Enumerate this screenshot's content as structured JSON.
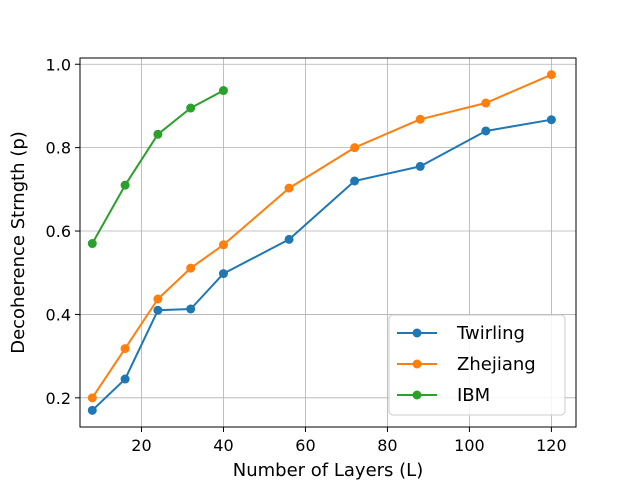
{
  "chart_data": {
    "type": "line",
    "title": "",
    "xlabel": "Number of Layers (L)",
    "ylabel": "Decoherence Strngth (p)",
    "xlim": [
      5,
      126
    ],
    "ylim": [
      0.13,
      1.015
    ],
    "x_ticks": [
      20,
      40,
      60,
      80,
      100,
      120
    ],
    "y_ticks": [
      0.2,
      0.4,
      0.6,
      0.8,
      1.0
    ],
    "x_tick_labels": [
      "20",
      "40",
      "60",
      "80",
      "100",
      "120"
    ],
    "y_tick_labels": [
      "0.2",
      "0.4",
      "0.6",
      "0.8",
      "1.0"
    ],
    "grid": true,
    "legend_position": "lower-right",
    "series": [
      {
        "name": "Twirling",
        "color": "#1f77b4",
        "x": [
          8,
          16,
          24,
          32,
          40,
          56,
          72,
          88,
          104,
          120
        ],
        "y": [
          0.17,
          0.245,
          0.41,
          0.413,
          0.498,
          0.58,
          0.72,
          0.755,
          0.84,
          0.867
        ]
      },
      {
        "name": "Zhejiang",
        "color": "#ff7f0e",
        "x": [
          8,
          16,
          24,
          32,
          40,
          56,
          72,
          88,
          104,
          120
        ],
        "y": [
          0.2,
          0.318,
          0.437,
          0.511,
          0.567,
          0.703,
          0.8,
          0.868,
          0.907,
          0.975
        ]
      },
      {
        "name": "IBM",
        "color": "#2ca02c",
        "x": [
          8,
          16,
          24,
          32,
          40
        ],
        "y": [
          0.57,
          0.71,
          0.832,
          0.895,
          0.937
        ]
      }
    ]
  }
}
